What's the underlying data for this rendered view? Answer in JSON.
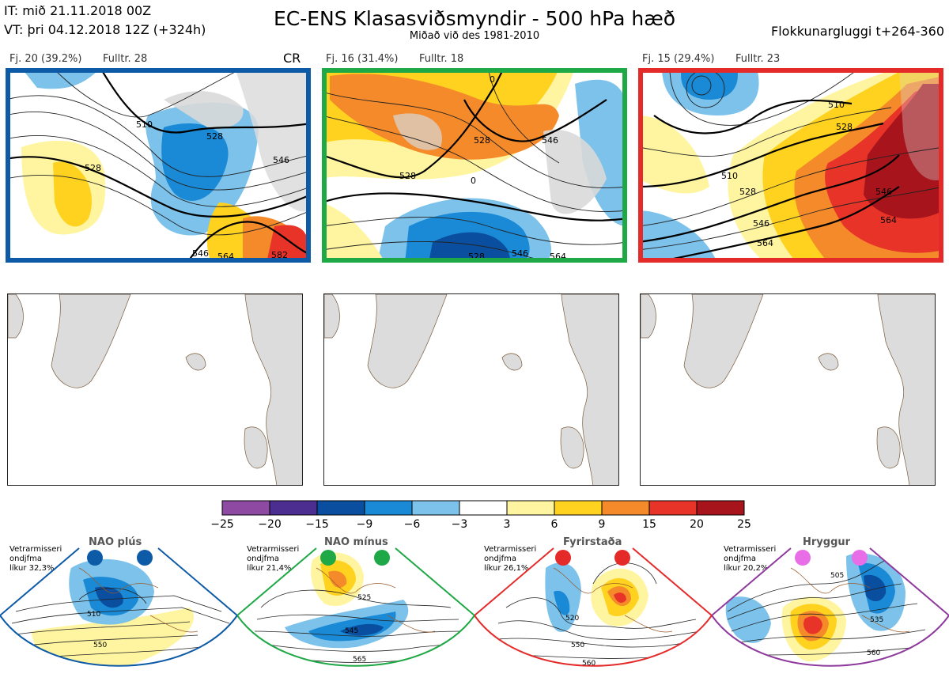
{
  "header": {
    "it_line": "IT: mið 21.11.2018 00Z",
    "vt_line": "VT: þri 04.12.2018 12Z  (+324h)",
    "title": "EC-ENS Klasasviðsmyndir - 500 hPa hæð",
    "subtitle": "Miðað við des 1981-2010",
    "window": "Flokkunargluggi t+264-360"
  },
  "clusters": [
    {
      "label": "Fj. 20 (39.2%)",
      "rep": "Fulltr. 28",
      "tag": "CR",
      "frame_color": "#0d5aa6",
      "contours": [
        "510",
        "528",
        "546",
        "546",
        "564",
        "582"
      ]
    },
    {
      "label": "Fj. 16 (31.4%)",
      "rep": "Fulltr. 18",
      "tag": "",
      "frame_color": "#1fa846",
      "contours": [
        "0",
        "528",
        "546",
        "0",
        "528",
        "546",
        "564"
      ]
    },
    {
      "label": "Fj. 15 (29.4%)",
      "rep": "Fulltr. 23",
      "tag": "",
      "frame_color": "#e52a2a",
      "contours": [
        "510",
        "528",
        "510",
        "528",
        "546",
        "564",
        "546",
        "564"
      ]
    }
  ],
  "colorbar": {
    "colors": [
      "#8e4aa3",
      "#4b2e8f",
      "#0a4f9f",
      "#1a8ad6",
      "#7cc2ea",
      "#ffffff",
      "#fff5a0",
      "#ffd21f",
      "#f58a2b",
      "#e83428",
      "#a8141b"
    ],
    "ticks": [
      "−25",
      "−20",
      "−15",
      "−9",
      "−6",
      "−3",
      "3",
      "6",
      "9",
      "15",
      "20",
      "25"
    ]
  },
  "regimes": [
    {
      "name": "NAO plús",
      "dot_color": "#0d5aa6",
      "line1": "Vetrarmisseri",
      "line2": "ondjfma",
      "line3": "líkur 32,3%",
      "contours": [
        "510",
        "550"
      ]
    },
    {
      "name": "NAO mínus",
      "dot_color": "#1fa846",
      "line1": "Vetrarmisseri",
      "line2": "ondjfma",
      "line3": "líkur 21,4%",
      "contours": [
        "525",
        "545",
        "565"
      ]
    },
    {
      "name": "Fyrirstaða",
      "dot_color": "#e52a2a",
      "line1": "Vetrarmisseri",
      "line2": "ondjfma",
      "line3": "líkur 26,1%",
      "contours": [
        "520",
        "550",
        "560"
      ]
    },
    {
      "name": "Hryggur",
      "dot_color": "#e86ee8",
      "line1": "Vetrarmisseri",
      "line2": "ondjfma",
      "line3": "líkur 20,2%",
      "contours": [
        "505",
        "535",
        "560"
      ]
    }
  ]
}
